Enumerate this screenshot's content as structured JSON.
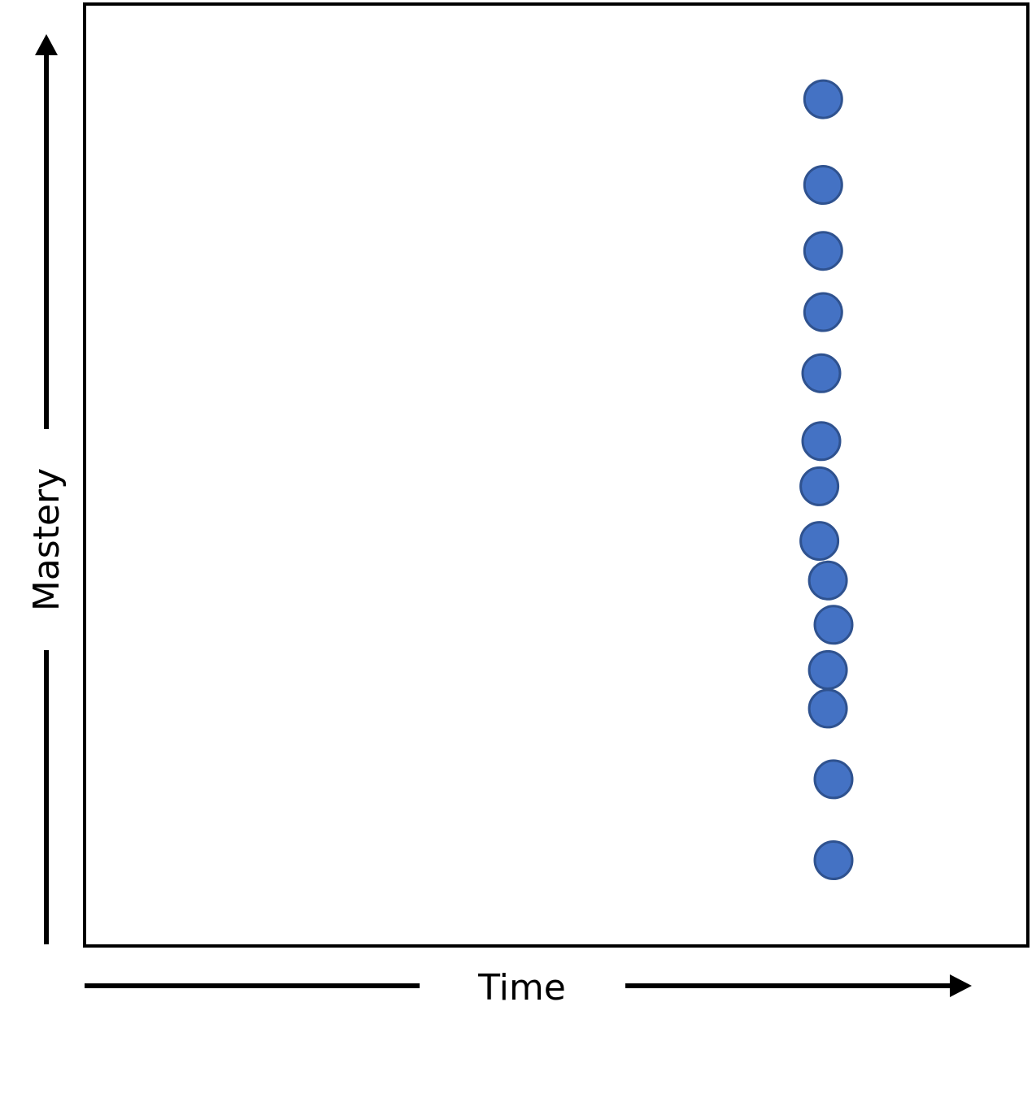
{
  "chart_data": {
    "type": "scatter",
    "title": "",
    "xlabel": "Time",
    "ylabel": "Mastery",
    "xlim": [
      0,
      100
    ],
    "ylim": [
      0,
      100
    ],
    "grid": false,
    "legend": "none",
    "series": [
      {
        "color": "#4472C4",
        "edge_color": "#2F528F",
        "points": [
          {
            "x": 78.3,
            "y": 89.9
          },
          {
            "x": 78.3,
            "y": 80.8
          },
          {
            "x": 78.3,
            "y": 73.8
          },
          {
            "x": 78.3,
            "y": 67.3
          },
          {
            "x": 78.1,
            "y": 60.8
          },
          {
            "x": 78.1,
            "y": 53.6
          },
          {
            "x": 77.9,
            "y": 48.8
          },
          {
            "x": 77.9,
            "y": 43.0
          },
          {
            "x": 78.8,
            "y": 38.8
          },
          {
            "x": 79.4,
            "y": 34.1
          },
          {
            "x": 78.8,
            "y": 29.3
          },
          {
            "x": 78.8,
            "y": 25.2
          },
          {
            "x": 79.4,
            "y": 17.7
          },
          {
            "x": 79.4,
            "y": 9.1
          }
        ]
      }
    ]
  }
}
